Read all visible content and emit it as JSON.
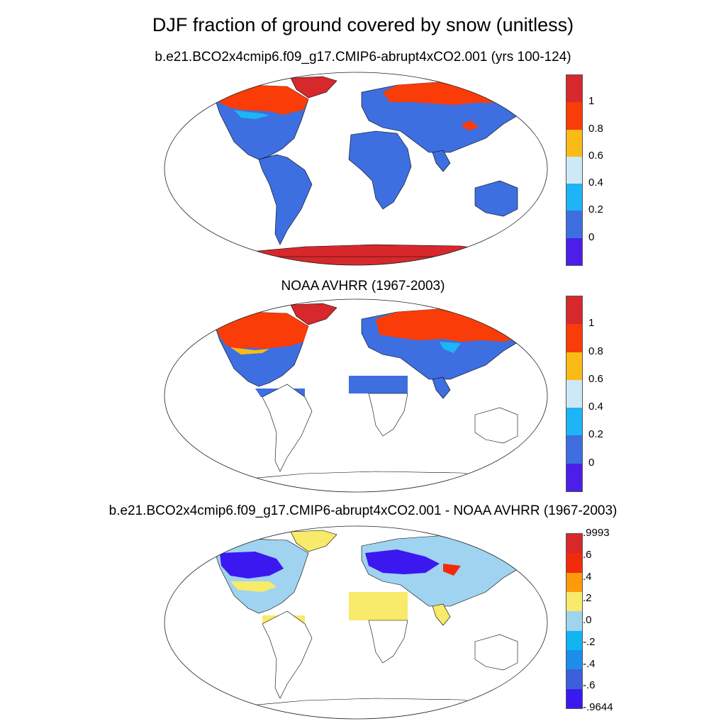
{
  "title": "DJF fraction of ground covered by snow (unitless)",
  "panels": [
    {
      "name": "model",
      "subtitle": "b.e21.BCO2x4cmip6.f09_g17.CMIP6-abrupt4xCO2.001 (yrs 100-124)",
      "colorbar": {
        "colors": [
          "#4b1fe8",
          "#3d6fe0",
          "#1eb4f5",
          "#cde9f7",
          "#fbbb17",
          "#fa3c08",
          "#d7282c"
        ],
        "labels": [
          "0",
          "0.2",
          "0.4",
          "0.6",
          "0.8",
          "1"
        ]
      }
    },
    {
      "name": "observations",
      "subtitle": "NOAA AVHRR (1967-2003)",
      "colorbar": {
        "colors": [
          "#4b1fe8",
          "#3d6fe0",
          "#1eb4f5",
          "#cde9f7",
          "#fbbb17",
          "#fa3c08",
          "#d7282c"
        ],
        "labels": [
          "0",
          "0.2",
          "0.4",
          "0.6",
          "0.8",
          "1"
        ]
      }
    },
    {
      "name": "difference",
      "subtitle": "b.e21.BCO2x4cmip6.f09_g17.CMIP6-abrupt4xCO2.001 - NOAA AVHRR (1967-2003)",
      "colorbar": {
        "colors": [
          "#3c18f0",
          "#3c5fdc",
          "#1a8ee8",
          "#10b5f2",
          "#9fd3ef",
          "#f8ea6a",
          "#fc9b0a",
          "#f22b0c",
          "#d7282c"
        ],
        "labels": [
          ".9993",
          ".6",
          ".4",
          ".2",
          ".0",
          "-.2",
          "-.4",
          "-.6",
          "-.9644"
        ]
      }
    }
  ]
}
